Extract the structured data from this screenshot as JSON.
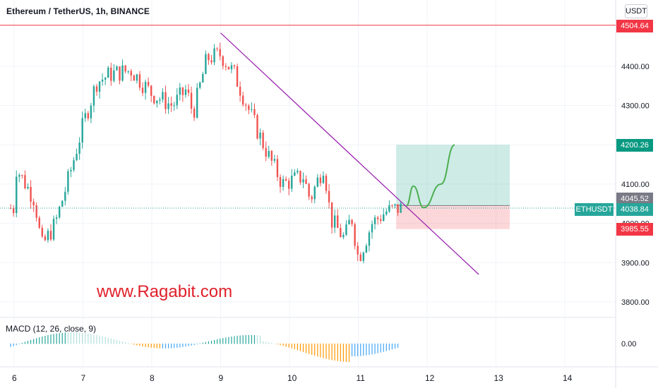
{
  "header": {
    "title": "Ethereum / TetherUS, 1h, BINANCE",
    "currency_button": "USDT"
  },
  "watermark": "www.Ragabit.com",
  "macd": {
    "label": "MACD (12, 26, close, 9)",
    "zero_label": "0.00"
  },
  "price_axis": {
    "ticks": [
      "4400.00",
      "4300.00",
      "4100.00",
      "4000.00",
      "3900.00",
      "3800.00"
    ],
    "tag_high": "4504.64",
    "tag_target": "4200.26",
    "tag_entry": "4045.52",
    "tag_last": "4038.84",
    "tag_symbol": "ETHUSDT",
    "tag_stop": "3985.55"
  },
  "time_axis": {
    "ticks": [
      "6",
      "7",
      "8",
      "9",
      "10",
      "11",
      "12",
      "13",
      "14"
    ]
  },
  "chart_data": {
    "type": "candlestick",
    "symbol": "ETHUSDT",
    "exchange": "BINANCE",
    "interval": "1h",
    "y_range": [
      3760,
      4560
    ],
    "x_range_days": [
      5.85,
      14.6
    ],
    "last_price": 4038.84,
    "horizontal_line_high": 4504.64,
    "position": {
      "entry": 4045.52,
      "target": 4200.26,
      "stop": 3985.55
    },
    "trendline": {
      "from": {
        "day": 9.0,
        "price": 4485
      },
      "to": {
        "day": 12.75,
        "price": 3870
      }
    },
    "candles_ohlc_anchors": [
      {
        "day": 6.0,
        "close": 4150
      },
      {
        "day": 6.3,
        "close": 4060
      },
      {
        "day": 6.4,
        "close": 3940
      },
      {
        "day": 6.6,
        "close": 4000
      },
      {
        "day": 6.8,
        "close": 4120
      },
      {
        "day": 7.0,
        "close": 4250
      },
      {
        "day": 7.2,
        "close": 4360
      },
      {
        "day": 7.4,
        "close": 4380
      },
      {
        "day": 7.7,
        "close": 4390
      },
      {
        "day": 8.0,
        "close": 4330
      },
      {
        "day": 8.3,
        "close": 4300
      },
      {
        "day": 8.5,
        "close": 4340
      },
      {
        "day": 8.6,
        "close": 4280
      },
      {
        "day": 8.8,
        "close": 4420
      },
      {
        "day": 9.0,
        "close": 4430
      },
      {
        "day": 9.2,
        "close": 4380
      },
      {
        "day": 9.5,
        "close": 4250
      },
      {
        "day": 9.7,
        "close": 4170
      },
      {
        "day": 9.9,
        "close": 4100
      },
      {
        "day": 10.2,
        "close": 4120
      },
      {
        "day": 10.3,
        "close": 4060
      },
      {
        "day": 10.5,
        "close": 4150
      },
      {
        "day": 10.6,
        "close": 4010
      },
      {
        "day": 10.8,
        "close": 3960
      },
      {
        "day": 10.9,
        "close": 4020
      },
      {
        "day": 11.0,
        "close": 3910
      },
      {
        "day": 11.2,
        "close": 4000
      },
      {
        "day": 11.4,
        "close": 4030
      },
      {
        "day": 11.6,
        "close": 4039
      }
    ],
    "projection_path": [
      {
        "day": 11.7,
        "price": 4045
      },
      {
        "day": 11.8,
        "price": 4095
      },
      {
        "day": 11.95,
        "price": 4040
      },
      {
        "day": 12.2,
        "price": 4100
      },
      {
        "day": 12.4,
        "price": 4200
      }
    ]
  }
}
